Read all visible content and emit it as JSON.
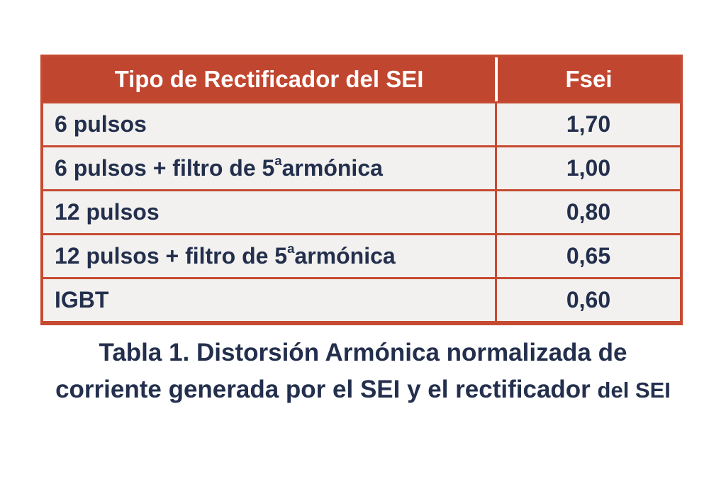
{
  "colors": {
    "page_bg": "#ffffff",
    "header_bg": "#c1462f",
    "header_text": "#ffffff",
    "border": "#c64a31",
    "row_bg": "#f2f1ef",
    "text": "#232f4d"
  },
  "table": {
    "headers": [
      "Tipo de Rectificador del SEI",
      "Fsei"
    ],
    "rows": [
      {
        "pre": "6 pulsos",
        "sup": "",
        "post": "",
        "value": "1,70"
      },
      {
        "pre": "6 pulsos + filtro de 5",
        "sup": "a",
        "post": " armónica",
        "value": "1,00"
      },
      {
        "pre": "12 pulsos",
        "sup": "",
        "post": "",
        "value": "0,80"
      },
      {
        "pre": "12 pulsos + filtro de 5",
        "sup": "a",
        "post": " armónica",
        "value": "0,65"
      },
      {
        "pre": "IGBT",
        "sup": "",
        "post": "",
        "value": "0,60"
      }
    ]
  },
  "caption": {
    "line1": "Tabla 1. Distorsión Armónica normalizada de",
    "line2_main": "corriente generada por el SEI y el rectificador",
    "line2_small": "del SEI"
  }
}
